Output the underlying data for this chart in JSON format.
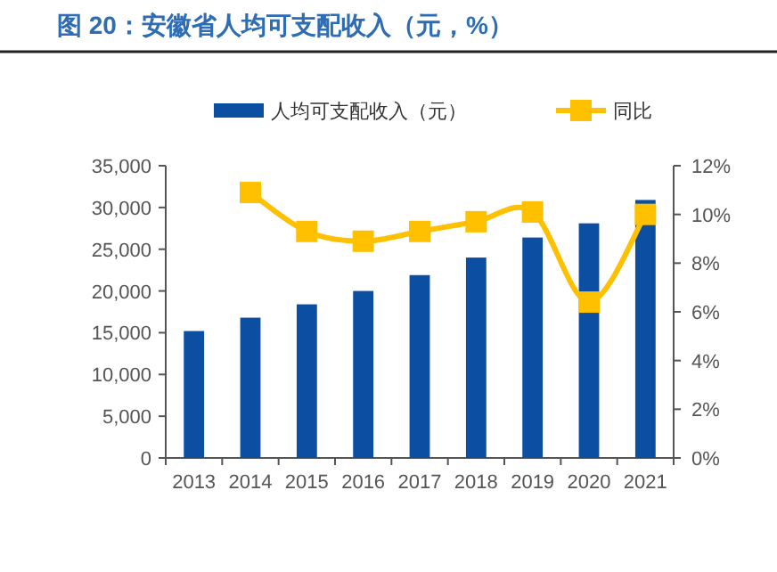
{
  "chart_data": {
    "type": "bar",
    "title": "图 20：安徽省人均可支配收入（元，%）",
    "categories": [
      "2013",
      "2014",
      "2015",
      "2016",
      "2017",
      "2018",
      "2019",
      "2020",
      "2021"
    ],
    "series": [
      {
        "name": "人均可支配收入（元）",
        "color": "#0b4ea2",
        "values": [
          15200,
          16800,
          18400,
          20000,
          21900,
          24000,
          26400,
          28100,
          30900
        ]
      },
      {
        "name": "同比",
        "type": "line",
        "axis": "y2",
        "color": "#ffc000",
        "marker": "square",
        "values": [
          null,
          10.9,
          9.3,
          8.9,
          9.3,
          9.7,
          10.1,
          6.4,
          10.0
        ]
      }
    ],
    "ylim": [
      0,
      35000
    ],
    "yticks": [
      {
        "value": 0,
        "label": "0"
      },
      {
        "value": 5000,
        "label": "5,000"
      },
      {
        "value": 10000,
        "label": "10,000"
      },
      {
        "value": 15000,
        "label": "15,000"
      },
      {
        "value": 20000,
        "label": "20,000"
      },
      {
        "value": 25000,
        "label": "25,000"
      },
      {
        "value": 30000,
        "label": "30,000"
      },
      {
        "value": 35000,
        "label": "35,000"
      }
    ],
    "y2lim": [
      0,
      12
    ],
    "y2ticks": [
      {
        "value": 0,
        "label": "0%"
      },
      {
        "value": 2,
        "label": "2%"
      },
      {
        "value": 4,
        "label": "4%"
      },
      {
        "value": 6,
        "label": "6%"
      },
      {
        "value": 8,
        "label": "8%"
      },
      {
        "value": 10,
        "label": "10%"
      },
      {
        "value": 12,
        "label": "12%"
      }
    ],
    "legend": "top",
    "grid": false
  }
}
